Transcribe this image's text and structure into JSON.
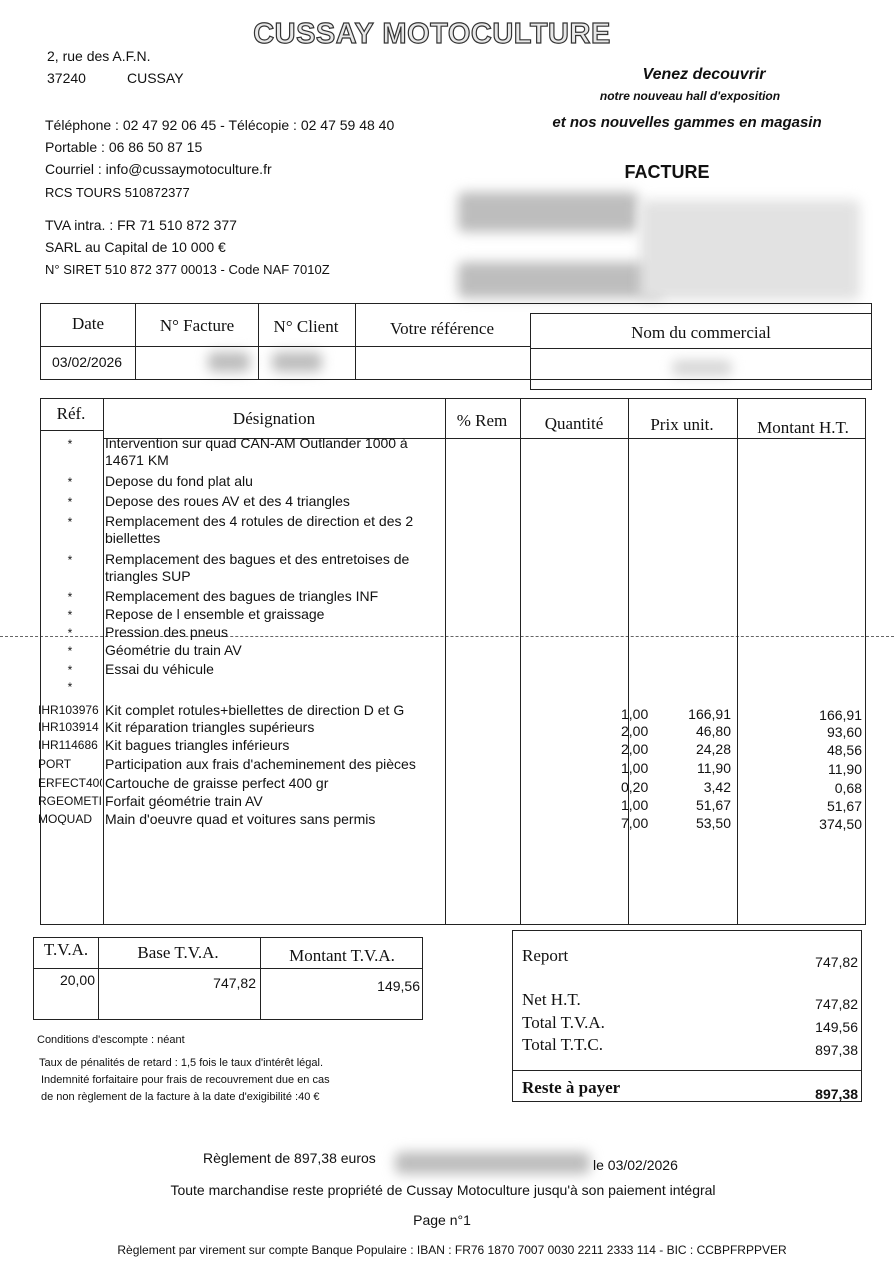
{
  "header": {
    "company": "CUSSAY MOTOCULTURE",
    "street": "2, rue des A.F.N.",
    "postcode": "37240",
    "city": "CUSSAY",
    "contacts": [
      "Téléphone : 02 47 92 06 45 - Télécopie : 02 47 59 48 40",
      "Portable : 06 86 50 87 15",
      "Courriel : info@cussaymotoculture.fr",
      "RCS TOURS 510872377",
      "TVA intra. : FR 71 510 872 377",
      "SARL au Capital de 10 000 €",
      "N° SIRET 510 872 377 00013 - Code NAF 7010Z"
    ],
    "slogan": [
      "Venez decouvrir",
      "notre nouveau hall d'exposition",
      "et nos nouvelles gammes en magasin"
    ],
    "doc_type": "FACTURE"
  },
  "info_table": {
    "headers": [
      "Date",
      "N° Facture",
      "N° Client",
      "Votre référence",
      "Nom du commercial"
    ],
    "date": "03/02/2026"
  },
  "items_table": {
    "headers": [
      "Réf.",
      "Désignation",
      "% Rem",
      "Quantité",
      "Prix unit.",
      "Montant H.T."
    ],
    "rows": [
      {
        "ref": "*",
        "designation": [
          "Intervention sur quad CAN-AM Outlander 1000 à",
          "14671 KM"
        ]
      },
      {
        "ref": "*",
        "designation": [
          "Depose du fond plat alu"
        ]
      },
      {
        "ref": "*",
        "designation": [
          "Depose des roues AV et des 4 triangles"
        ]
      },
      {
        "ref": "*",
        "designation": [
          "Remplacement des 4 rotules de direction et des 2",
          "biellettes"
        ]
      },
      {
        "ref": "*",
        "designation": [
          "Remplacement des bagues et des entretoises de",
          "triangles SUP"
        ]
      },
      {
        "ref": "*",
        "designation": [
          "Remplacement des bagues de triangles INF"
        ]
      },
      {
        "ref": "*",
        "designation": [
          "Repose de l ensemble et graissage"
        ]
      },
      {
        "ref": "*",
        "designation": [
          "Pression des pneus"
        ]
      },
      {
        "ref": "*",
        "designation": [
          "Géométrie du train AV"
        ]
      },
      {
        "ref": "*",
        "designation": [
          "Essai du véhicule"
        ]
      },
      {
        "ref": "*"
      },
      {
        "ref": "IHR103976",
        "designation": [
          "Kit complet rotules+biellettes de direction D et G"
        ],
        "quantity": "1,00",
        "unit_price": "166,91",
        "amount": "166,91"
      },
      {
        "ref": "IHR103914",
        "designation": [
          "Kit réparation triangles supérieurs"
        ],
        "quantity": "2,00",
        "unit_price": "46,80",
        "amount": "93,60"
      },
      {
        "ref": "IHR114686",
        "designation": [
          "Kit bagues triangles inférieurs"
        ],
        "quantity": "2,00",
        "unit_price": "24,28",
        "amount": "48,56"
      },
      {
        "ref": "PORT",
        "designation": [
          "Participation aux frais d'acheminement des pièces"
        ],
        "quantity": "1,00",
        "unit_price": "11,90",
        "amount": "11,90"
      },
      {
        "ref": "ERFECT400",
        "designation": [
          "Cartouche de graisse perfect 400 gr"
        ],
        "quantity": "0,20",
        "unit_price": "3,42",
        "amount": "0,68"
      },
      {
        "ref": "RGEOMETI",
        "designation": [
          "Forfait géométrie train AV"
        ],
        "quantity": "1,00",
        "unit_price": "51,67",
        "amount": "51,67"
      },
      {
        "ref": "MOQUAD",
        "designation": [
          "Main d'oeuvre quad et voitures sans permis"
        ],
        "quantity": "7,00",
        "unit_price": "53,50",
        "amount": "374,50"
      }
    ]
  },
  "vat_table": {
    "headers": [
      "T.V.A.",
      "Base T.V.A.",
      "Montant T.V.A."
    ],
    "rows": [
      [
        "20,00",
        "747,82",
        "149,56"
      ]
    ]
  },
  "totals": [
    {
      "label": "Report",
      "value": "747,82"
    },
    {
      "label": "Net H.T.",
      "value": "747,82"
    },
    {
      "label": "Total T.V.A.",
      "value": "149,56"
    },
    {
      "label": "Total T.T.C.",
      "value": "897,38"
    },
    {
      "label": "Reste à payer",
      "value": "897,38"
    }
  ],
  "conditions": [
    "Conditions d'escompte : néant",
    "Taux de pénalités de retard : 1,5 fois le taux d'intérêt légal.",
    "Indemnité forfaitaire pour frais de recouvrement due en cas",
    "de non règlement de la facture à la date d'exigibilité :40 €"
  ],
  "footer": {
    "payment": "Règlement de 897,38 euros",
    "payment_date": "le 03/02/2026",
    "ownership": "Toute marchandise reste propriété de Cussay Motoculture jusqu'à son paiement intégral",
    "page": "Page n°1",
    "bank": "Règlement par virement sur compte Banque Populaire : IBAN : FR76 1870 7007 0030 2211 2333 114 - BIC : CCBPFRPPVER"
  }
}
